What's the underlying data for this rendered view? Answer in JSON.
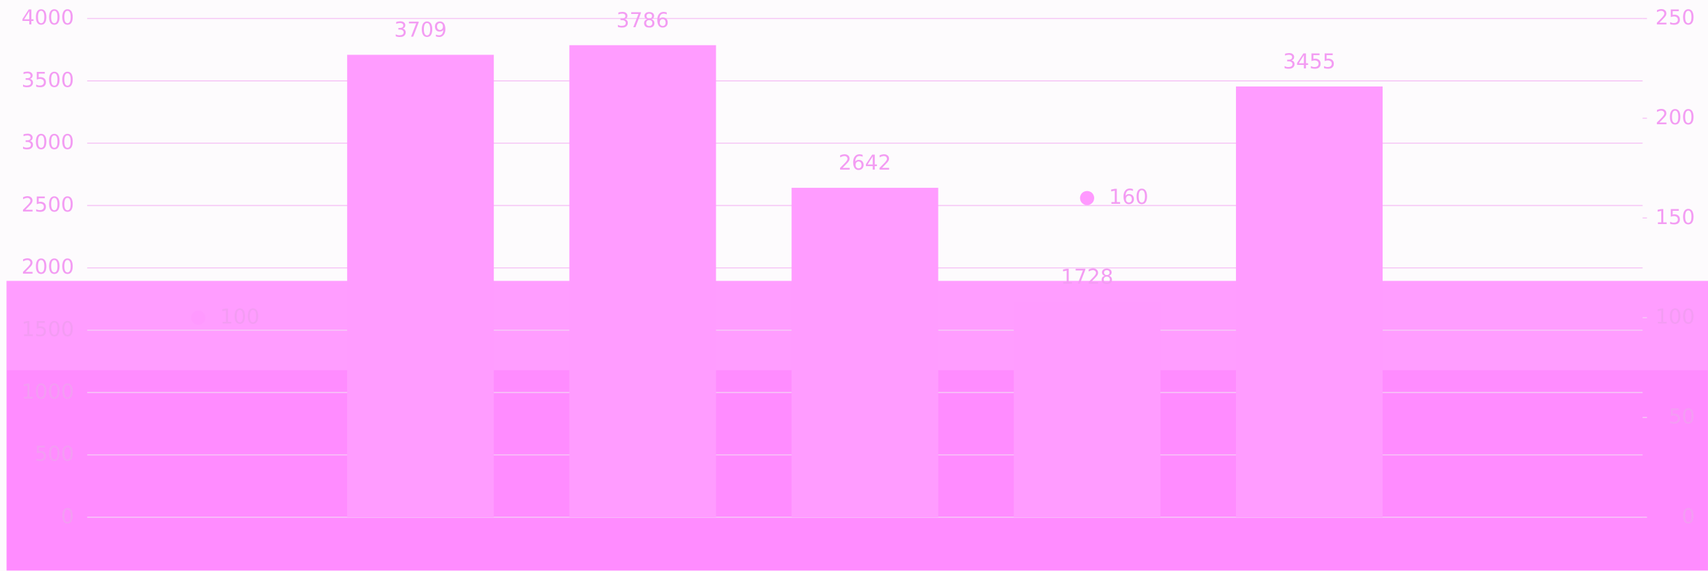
{
  "chart_data": {
    "type": "bar",
    "categories": [
      null,
      null,
      null,
      null,
      null,
      null,
      null
    ],
    "series": [
      {
        "type": "bar",
        "color": "#ff9cff",
        "values": [
          null,
          3709,
          3786,
          2642,
          1728,
          3455,
          null
        ]
      },
      {
        "type": "line",
        "axis": "y2",
        "color": "#ff99ff",
        "values": [
          100,
          null,
          null,
          null,
          160,
          null,
          null
        ]
      }
    ],
    "ylim": [
      0,
      4000
    ],
    "yticks": [
      0,
      500,
      1000,
      1500,
      2000,
      2500,
      3000,
      3500,
      4000
    ],
    "y2lim": [
      0,
      250
    ],
    "y2ticks": [
      0,
      50,
      100,
      150,
      200,
      250
    ],
    "grid": true
  }
}
